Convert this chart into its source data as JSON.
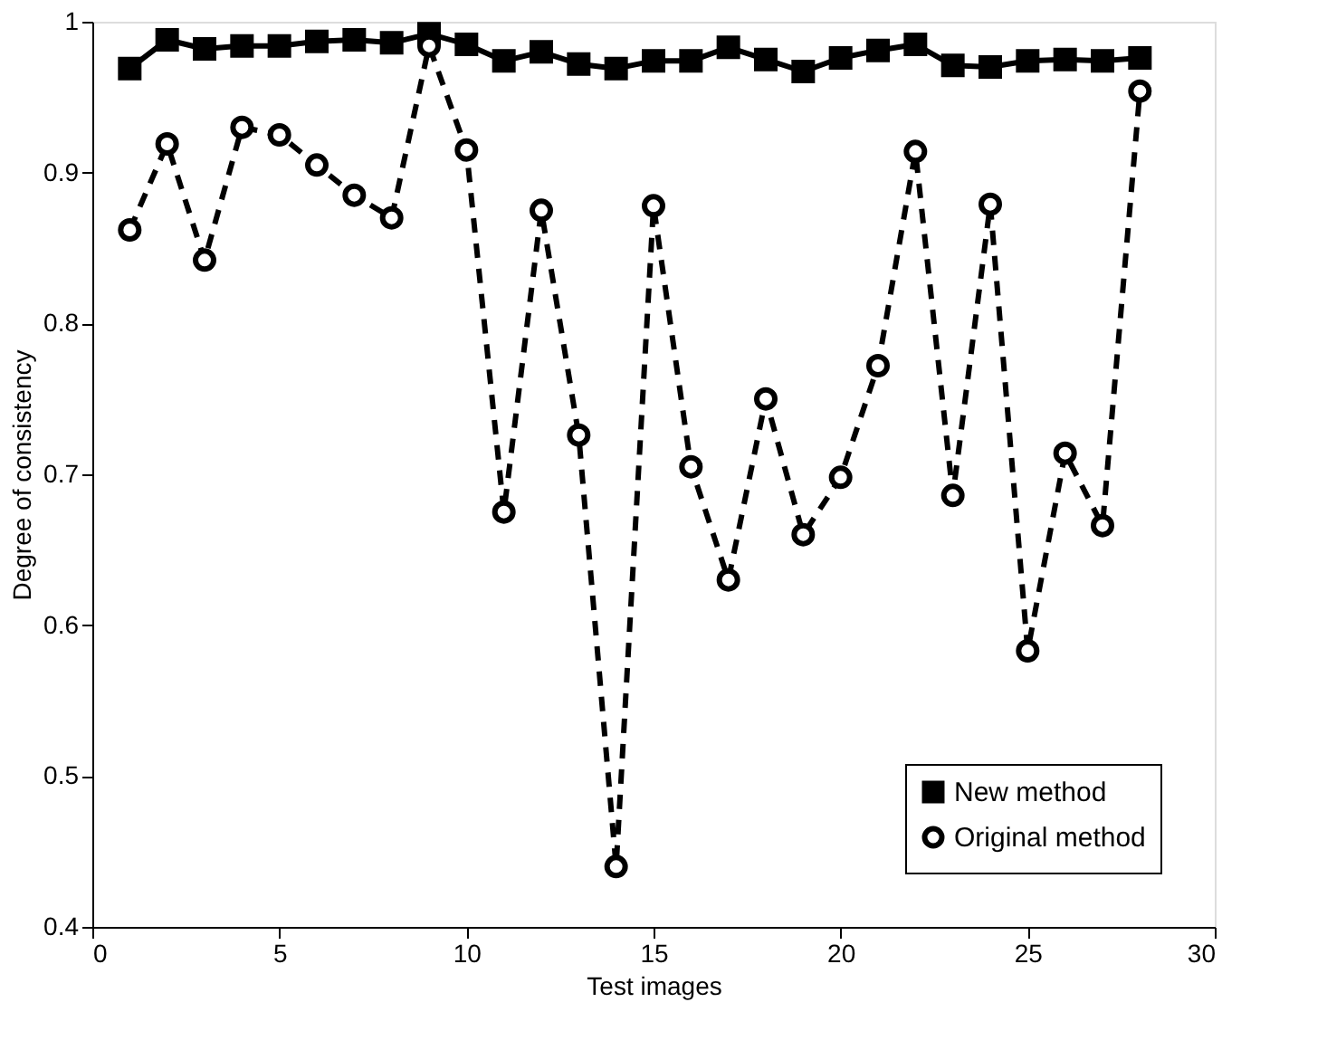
{
  "chart_data": {
    "type": "line",
    "xlabel": "Test images",
    "ylabel": "Degree of consistency",
    "x": [
      1,
      2,
      3,
      4,
      5,
      6,
      7,
      8,
      9,
      10,
      11,
      12,
      13,
      14,
      15,
      16,
      17,
      18,
      19,
      20,
      21,
      22,
      23,
      24,
      25,
      26,
      27,
      28
    ],
    "series": [
      {
        "name": "New method",
        "color": "#000000",
        "marker": "square",
        "line_style": "solid",
        "values": [
          0.969,
          0.988,
          0.982,
          0.984,
          0.984,
          0.987,
          0.988,
          0.986,
          0.992,
          0.985,
          0.974,
          0.98,
          0.972,
          0.969,
          0.974,
          0.974,
          0.983,
          0.975,
          0.967,
          0.976,
          0.981,
          0.985,
          0.971,
          0.97,
          0.974,
          0.975,
          0.974,
          0.976
        ]
      },
      {
        "name": "Original method",
        "color": "#000000",
        "marker": "circle",
        "line_style": "dashed",
        "values": [
          0.862,
          0.919,
          0.842,
          0.93,
          0.925,
          0.905,
          0.885,
          0.87,
          0.984,
          0.915,
          0.675,
          0.875,
          0.726,
          0.44,
          0.878,
          0.705,
          0.63,
          0.75,
          0.66,
          0.698,
          0.772,
          0.914,
          0.686,
          0.879,
          0.583,
          0.714,
          0.666,
          0.954
        ]
      }
    ],
    "xlim": [
      0,
      30
    ],
    "xticks": [
      0,
      5,
      10,
      15,
      20,
      25,
      30
    ],
    "ylim": [
      0.4,
      1
    ],
    "yticks": [
      0.4,
      0.5,
      0.6,
      0.7,
      0.8,
      0.9,
      1
    ],
    "grid": false,
    "legend": "bottom right"
  }
}
